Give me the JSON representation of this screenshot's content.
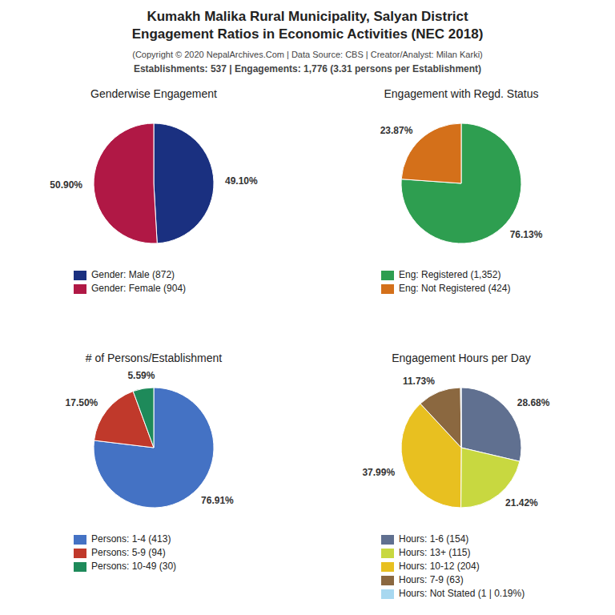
{
  "title": [
    "Kumakh Malika Rural Municipality, Salyan District",
    "Engagement Ratios in Economic Activities (NEC 2018)"
  ],
  "subtitle": [
    "(Copyright © 2020 NepalArchives.Com | Data Source: CBS | Creator/Analyst: Milan Karki)",
    "Establishments: 537 | Engagements: 1,776 (3.31 persons per Establishment)"
  ],
  "chart_data": [
    {
      "type": "pie",
      "title": "Genderwise Engagement",
      "categories": [
        "Gender: Male (872)",
        "Gender: Female (904)"
      ],
      "values": [
        49.1,
        50.9
      ],
      "value_labels": [
        "49.10%",
        "50.90%"
      ],
      "colors": [
        "#1a3080",
        "#b01845"
      ],
      "data_labels": true
    },
    {
      "type": "pie",
      "title": "Engagement with Regd. Status",
      "categories": [
        "Eng: Registered (1,352)",
        "Eng: Not Registered (424)"
      ],
      "values": [
        76.13,
        23.87
      ],
      "value_labels": [
        "76.13%",
        "23.87%"
      ],
      "colors": [
        "#2e9e50",
        "#d4701a"
      ],
      "data_labels": true
    },
    {
      "type": "pie",
      "title": "# of Persons/Establishment",
      "categories": [
        "Persons: 1-4 (413)",
        "Persons: 5-9 (94)",
        "Persons: 10-49 (30)"
      ],
      "values": [
        76.91,
        17.5,
        5.59
      ],
      "value_labels": [
        "76.91%",
        "17.50%",
        "5.59%"
      ],
      "colors": [
        "#4472c4",
        "#c0392b",
        "#1e8a5a"
      ],
      "data_labels": true
    },
    {
      "type": "pie",
      "title": "Engagement Hours per Day",
      "categories": [
        "Hours: 1-6 (154)",
        "Hours: 13+ (115)",
        "Hours: 10-12 (204)",
        "Hours: 7-9 (63)",
        "Hours: Not Stated (1 | 0.19%)"
      ],
      "values": [
        28.68,
        21.42,
        37.99,
        11.73,
        0.19
      ],
      "value_labels": [
        "28.68%",
        "21.42%",
        "37.99%",
        "11.73%",
        null
      ],
      "colors": [
        "#607090",
        "#c8d840",
        "#e8c020",
        "#8b6840",
        "#a8d8f0"
      ],
      "data_labels": true
    }
  ]
}
